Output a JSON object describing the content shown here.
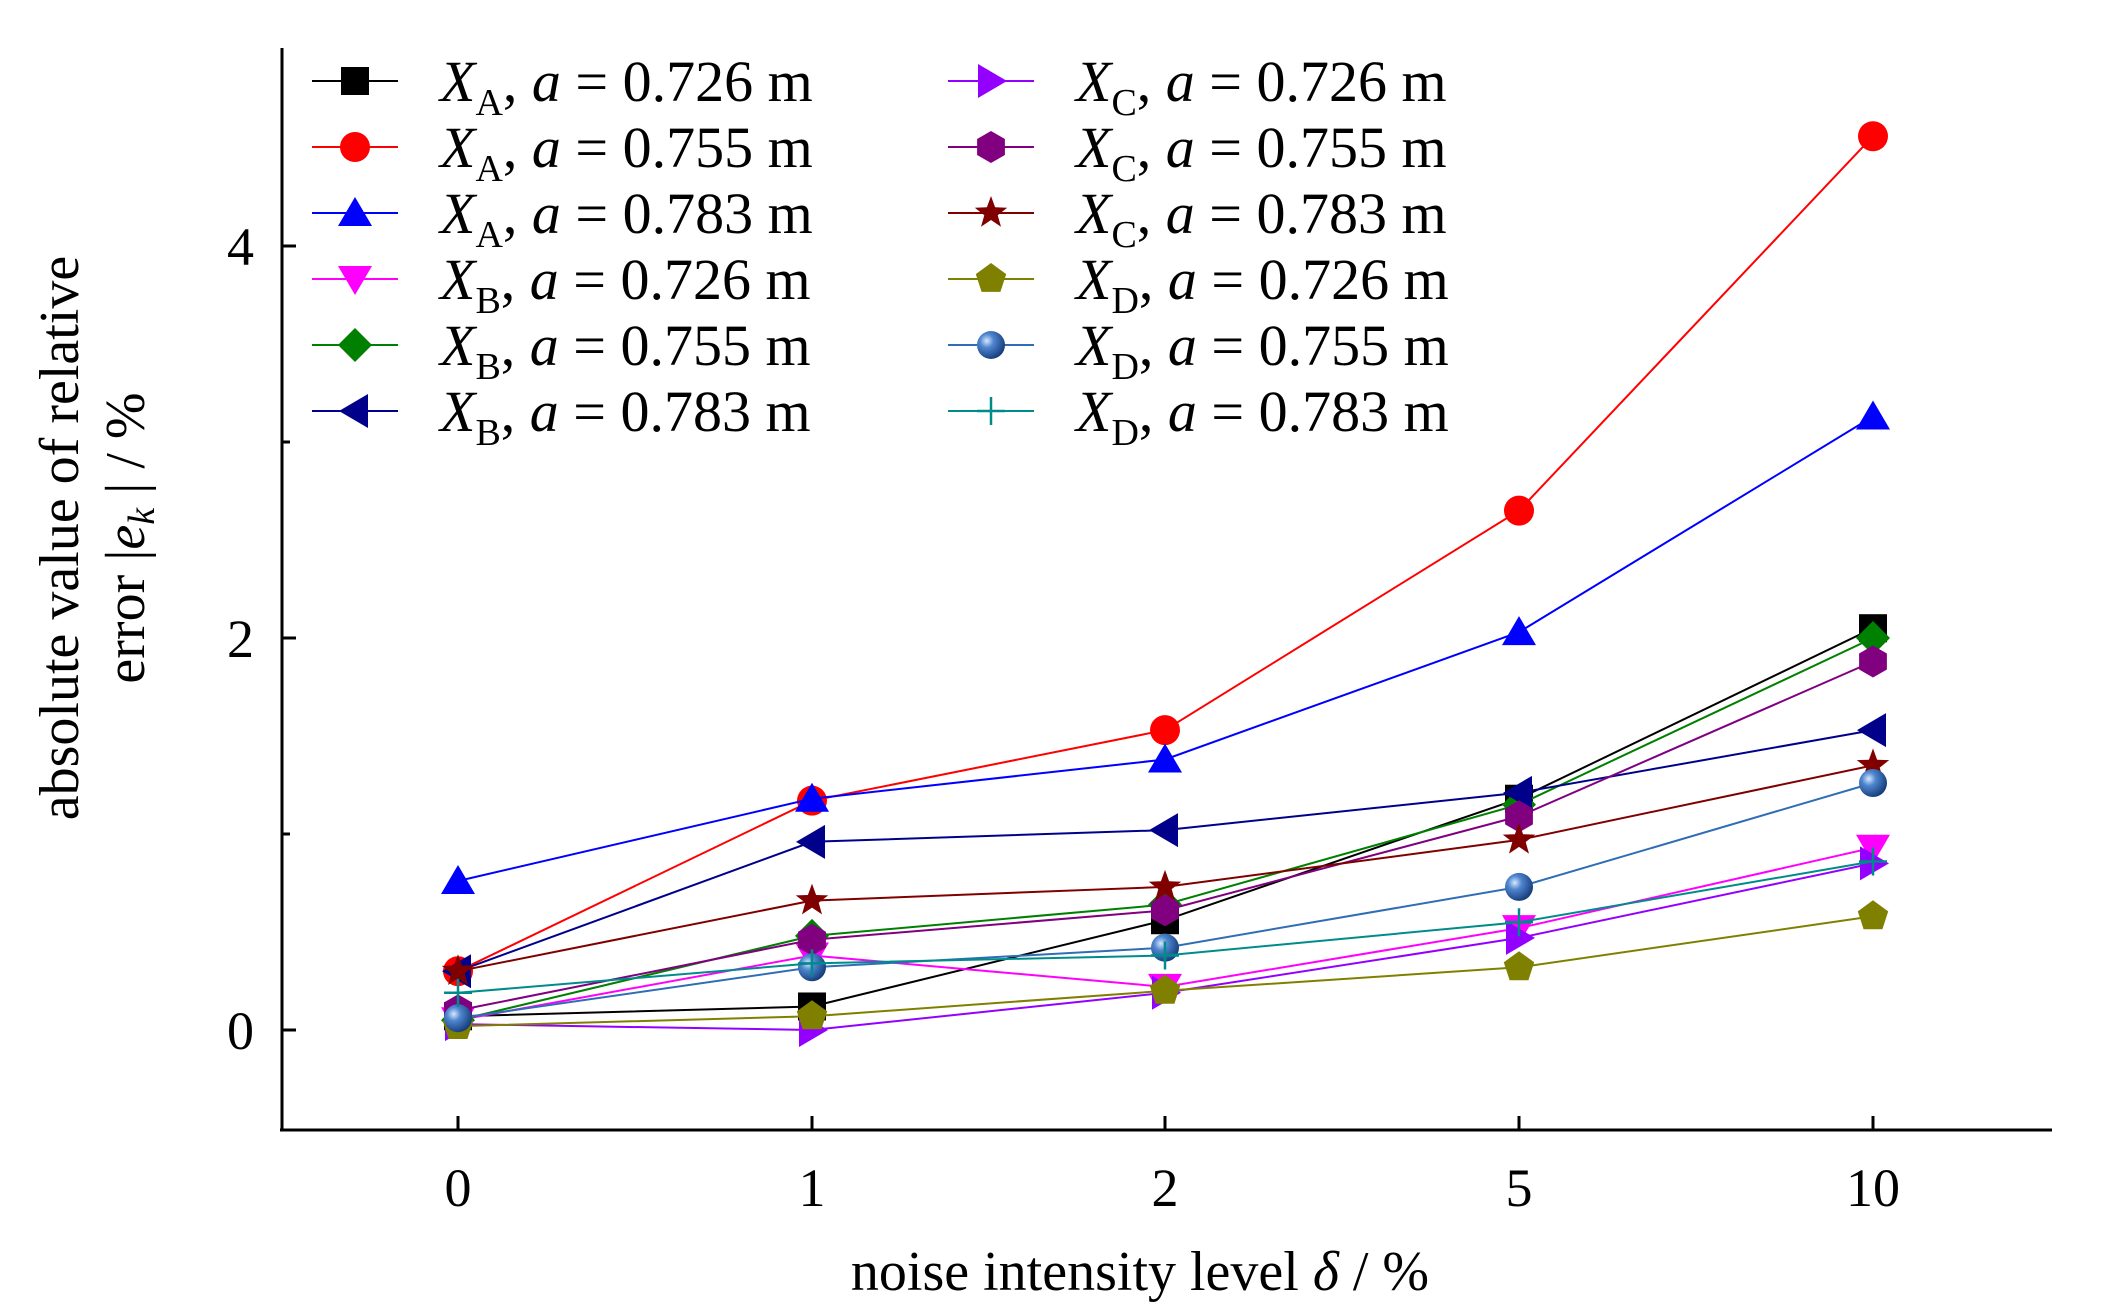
{
  "chart_data": {
    "type": "line",
    "categories": [
      "0",
      "1",
      "2",
      "5",
      "10"
    ],
    "xlabel": {
      "prefix": "noise intensity level ",
      "symbol": "δ",
      "suffix": " / %"
    },
    "ylabel": {
      "line1": "absolute value of relative",
      "line2_prefix": "error |",
      "line2_symbol": "e",
      "line2_sub": "k",
      "line2_suffix": " | / %"
    },
    "ylim": [
      -0.5,
      5
    ],
    "yticks": [
      0,
      2,
      4
    ],
    "yticks_minor": [
      1,
      3
    ],
    "grid": false,
    "legend_position": "top",
    "series": [
      {
        "name": "X_A, a = 0.726 m",
        "var": "X",
        "sub": "A",
        "a_label": "a",
        "value_text": "= 0.726 m",
        "marker": "square",
        "color": "#000000",
        "values": [
          0.07,
          0.12,
          0.56,
          1.18,
          2.05
        ]
      },
      {
        "name": "X_A, a = 0.755 m",
        "var": "X",
        "sub": "A",
        "a_label": "a",
        "value_text": "= 0.755 m",
        "marker": "circle",
        "color": "#ff0000",
        "values": [
          0.3,
          1.17,
          1.53,
          2.65,
          4.56
        ]
      },
      {
        "name": "X_A, a = 0.783 m",
        "var": "X",
        "sub": "A",
        "a_label": "a",
        "value_text": "= 0.783 m",
        "marker": "triangle-up",
        "color": "#0000ff",
        "values": [
          0.76,
          1.18,
          1.38,
          2.03,
          3.13
        ]
      },
      {
        "name": "X_B, a = 0.726 m",
        "var": "X",
        "sub": "B",
        "a_label": "a",
        "value_text": "= 0.726 m",
        "marker": "triangle-down",
        "color": "#ff00ff",
        "values": [
          0.05,
          0.38,
          0.22,
          0.52,
          0.93
        ]
      },
      {
        "name": "X_B, a = 0.755 m",
        "var": "X",
        "sub": "B",
        "a_label": "a",
        "value_text": "= 0.755 m",
        "marker": "diamond",
        "color": "#008000",
        "values": [
          0.05,
          0.48,
          0.64,
          1.15,
          2.0
        ]
      },
      {
        "name": "X_B, a = 0.783 m",
        "var": "X",
        "sub": "B",
        "a_label": "a",
        "value_text": "= 0.783 m",
        "marker": "triangle-left",
        "color": "#00008b",
        "values": [
          0.3,
          0.96,
          1.02,
          1.21,
          1.53
        ]
      },
      {
        "name": "X_C, a = 0.726 m",
        "var": "X",
        "sub": "C",
        "a_label": "a",
        "value_text": "= 0.726 m",
        "marker": "triangle-right",
        "color": "#9400ff",
        "values": [
          0.03,
          0.0,
          0.19,
          0.47,
          0.85
        ]
      },
      {
        "name": "X_C, a = 0.755 m",
        "var": "X",
        "sub": "C",
        "a_label": "a",
        "value_text": "= 0.755 m",
        "marker": "hexagon",
        "color": "#800080",
        "values": [
          0.1,
          0.46,
          0.61,
          1.09,
          1.88
        ]
      },
      {
        "name": "X_C, a = 0.783 m",
        "var": "X",
        "sub": "C",
        "a_label": "a",
        "value_text": "= 0.783 m",
        "marker": "star",
        "color": "#800000",
        "values": [
          0.3,
          0.66,
          0.73,
          0.97,
          1.35
        ]
      },
      {
        "name": "X_D, a = 0.726 m",
        "var": "X",
        "sub": "D",
        "a_label": "a",
        "value_text": "= 0.726 m",
        "marker": "pentagon",
        "color": "#808000",
        "values": [
          0.02,
          0.07,
          0.2,
          0.32,
          0.58
        ]
      },
      {
        "name": "X_D, a = 0.755 m",
        "var": "X",
        "sub": "D",
        "a_label": "a",
        "value_text": "= 0.755 m",
        "marker": "sphere",
        "color": "#2f6db5",
        "values": [
          0.06,
          0.32,
          0.42,
          0.73,
          1.26
        ]
      },
      {
        "name": "X_D, a = 0.783 m",
        "var": "X",
        "sub": "D",
        "a_label": "a",
        "value_text": "= 0.783 m",
        "marker": "plus",
        "color": "#008b8b",
        "values": [
          0.19,
          0.34,
          0.38,
          0.55,
          0.86
        ]
      }
    ]
  }
}
